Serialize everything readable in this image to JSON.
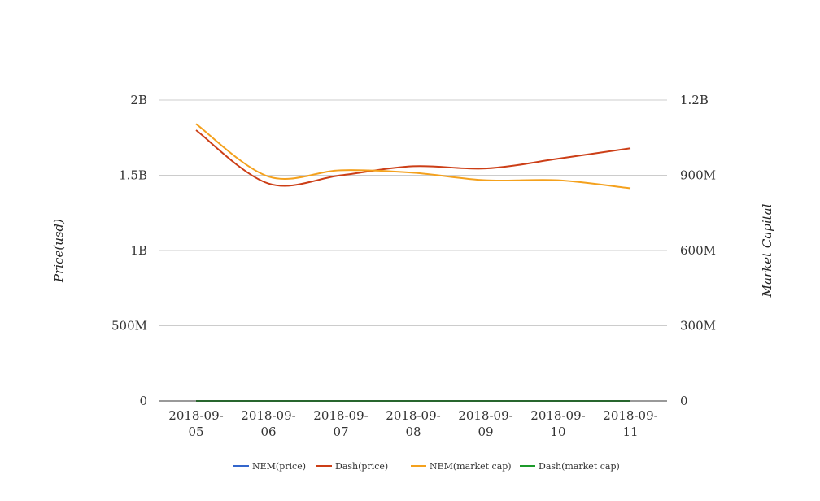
{
  "chart_data": {
    "type": "line",
    "title": "",
    "categories": [
      "2018-09-05",
      "2018-09-06",
      "2018-09-07",
      "2018-09-08",
      "2018-09-09",
      "2018-09-10",
      "2018-09-11"
    ],
    "category_labels": [
      [
        "2018-09-",
        "05"
      ],
      [
        "2018-09-",
        "06"
      ],
      [
        "2018-09-",
        "07"
      ],
      [
        "2018-09-",
        "08"
      ],
      [
        "2018-09-",
        "09"
      ],
      [
        "2018-09-",
        "10"
      ],
      [
        "2018-09-",
        "11"
      ]
    ],
    "y_left": {
      "label": "Price(usd)",
      "ylim": [
        0,
        2000000000
      ],
      "ticks": [
        0,
        500000000,
        1000000000,
        1500000000,
        2000000000
      ],
      "tick_labels": [
        "0",
        "500M",
        "1B",
        "1.5B",
        "2B"
      ]
    },
    "y_right": {
      "label": "Market Capital",
      "ylim": [
        0,
        1200000000
      ],
      "ticks": [
        0,
        300000000,
        600000000,
        900000000,
        1200000000
      ],
      "tick_labels": [
        "0",
        "300M",
        "600M",
        "900M",
        "1.2B"
      ]
    },
    "grid": true,
    "legend_position": "bottom",
    "series": [
      {
        "name": "NEM(price)",
        "axis": "left",
        "color": "#3366cc",
        "values": [
          0.1,
          0.09,
          0.09,
          0.09,
          0.08,
          0.08,
          0.08
        ]
      },
      {
        "name": "Dash(price)",
        "axis": "left",
        "color": "#cc3e16",
        "values": [
          1800000000,
          1445000000,
          1500000000,
          1560000000,
          1545000000,
          1610000000,
          1680000000
        ]
      },
      {
        "name": "NEM(market cap)",
        "axis": "right",
        "color": "#f4a11d",
        "values": [
          1105000000,
          895000000,
          920000000,
          910000000,
          880000000,
          880000000,
          848000000
        ]
      },
      {
        "name": "Dash(market cap)",
        "axis": "right",
        "color": "#1c9a2a",
        "values": [
          180,
          165,
          168,
          170,
          169,
          172,
          176
        ]
      }
    ]
  }
}
